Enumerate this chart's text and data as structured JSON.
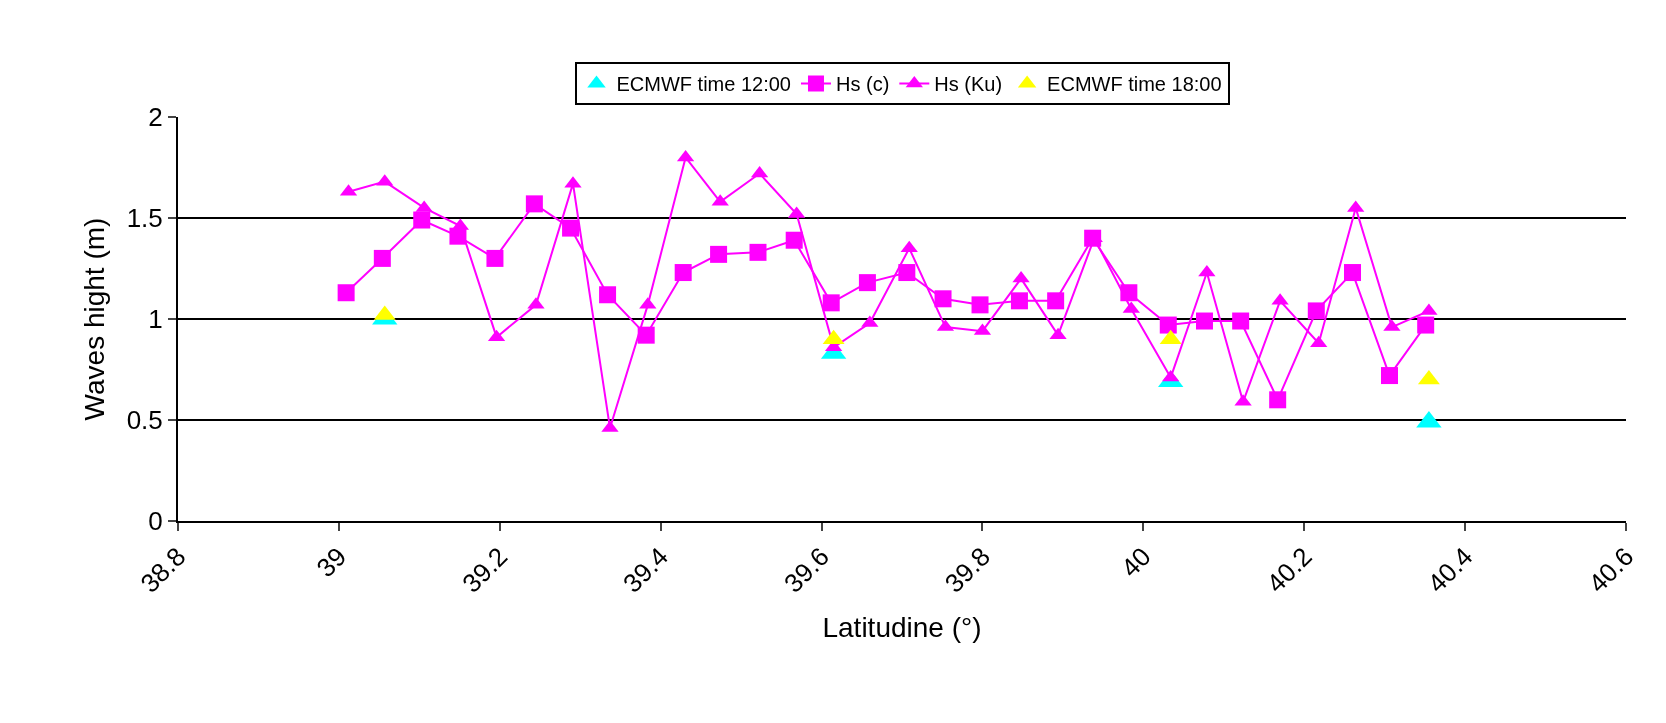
{
  "chart_data": {
    "type": "line",
    "xlabel": "Latitudine (°)",
    "ylabel": "Waves hight (m)",
    "xlim": [
      38.8,
      40.6
    ],
    "xticks": [
      38.8,
      39,
      39.2,
      39.4,
      39.6,
      39.8,
      40,
      40.2,
      40.4,
      40.6
    ],
    "ylim": [
      0,
      2
    ],
    "yticks": [
      0,
      0.5,
      1,
      1.5,
      2
    ],
    "grid": "y",
    "legend": "top",
    "series": [
      {
        "name": "ECMWF time 12:00",
        "type": "scatter",
        "marker": "triangle",
        "color": "#00ffff",
        "x": [
          39.057,
          39.615,
          40.034,
          40.355
        ],
        "values": [
          1.0,
          0.83,
          0.69,
          0.49
        ]
      },
      {
        "name": "Hs (c)",
        "marker": "square",
        "color": "#ff00ff",
        "x": [
          39.009,
          39.054,
          39.103,
          39.148,
          39.194,
          39.243,
          39.288,
          39.334,
          39.382,
          39.428,
          39.472,
          39.521,
          39.566,
          39.612,
          39.657,
          39.706,
          39.751,
          39.797,
          39.846,
          39.891,
          39.937,
          39.982,
          40.031,
          40.076,
          40.121,
          40.167,
          40.215,
          40.26,
          40.306,
          40.351
        ],
        "values": [
          1.13,
          1.3,
          1.49,
          1.41,
          1.3,
          1.57,
          1.45,
          1.12,
          0.92,
          1.23,
          1.32,
          1.33,
          1.39,
          1.08,
          1.18,
          1.23,
          1.1,
          1.07,
          1.09,
          1.09,
          1.4,
          1.13,
          0.97,
          0.99,
          0.99,
          0.6,
          1.04,
          1.23,
          0.72,
          0.97
        ]
      },
      {
        "name": "Hs (Ku)",
        "marker": "triangle",
        "color": "#ff00ff",
        "x": [
          39.012,
          39.057,
          39.106,
          39.151,
          39.196,
          39.245,
          39.291,
          39.337,
          39.384,
          39.431,
          39.474,
          39.523,
          39.569,
          39.615,
          39.66,
          39.709,
          39.754,
          39.8,
          39.848,
          39.894,
          39.939,
          39.985,
          40.034,
          40.079,
          40.124,
          40.17,
          40.218,
          40.264,
          40.309,
          40.355
        ],
        "values": [
          1.63,
          1.68,
          1.55,
          1.46,
          0.91,
          1.07,
          1.67,
          0.46,
          1.07,
          1.8,
          1.58,
          1.72,
          1.52,
          0.86,
          0.98,
          1.35,
          0.96,
          0.94,
          1.2,
          0.92,
          1.4,
          1.05,
          0.71,
          1.23,
          0.59,
          1.09,
          0.88,
          1.55,
          0.96,
          1.04
        ]
      },
      {
        "name": "ECMWF time 18:00",
        "type": "scatter",
        "marker": "triangle",
        "color": "#ffff00",
        "x": [
          39.057,
          39.615,
          40.034,
          40.355
        ],
        "values": [
          1.02,
          0.9,
          0.9,
          0.7
        ]
      }
    ]
  }
}
